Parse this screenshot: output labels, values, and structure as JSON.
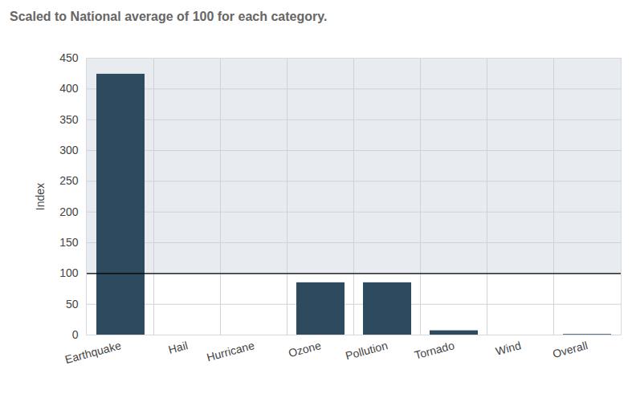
{
  "chart_data": {
    "type": "bar",
    "subtitle": "Scaled to National average of 100 for each category.",
    "y_label": "Index",
    "categories": [
      "Earthquake",
      "Hail",
      "Hurricane",
      "Ozone",
      "Pollution",
      "Tornado",
      "Wind",
      "Overall"
    ],
    "values": [
      424,
      0,
      0,
      85,
      85,
      7,
      0,
      1
    ],
    "color": "#2d4a5e",
    "reference": 100,
    "ylim": [
      0,
      450
    ],
    "yticks": [
      0,
      50,
      100,
      150,
      200,
      250,
      300,
      350,
      400,
      450
    ],
    "grid": true
  }
}
